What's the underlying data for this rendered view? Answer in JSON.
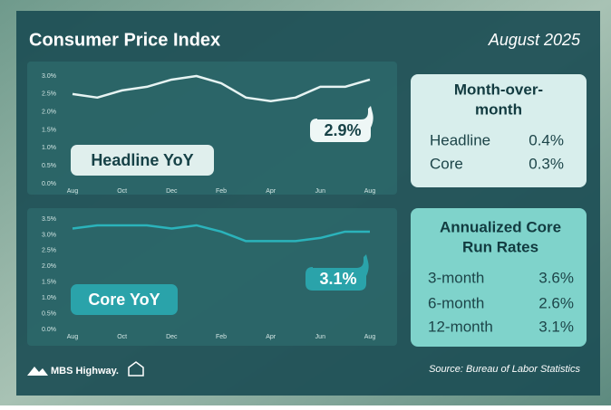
{
  "header": {
    "title": "Consumer Price Index",
    "date": "August 2025"
  },
  "chart_data": [
    {
      "type": "line",
      "title": "Headline YoY",
      "categories": [
        "Aug",
        null,
        "Oct",
        null,
        "Dec",
        null,
        "Feb",
        null,
        "Apr",
        null,
        "Jun",
        null,
        "Aug"
      ],
      "values": [
        2.5,
        2.4,
        2.6,
        2.7,
        2.9,
        3.0,
        2.8,
        2.4,
        2.3,
        2.4,
        2.7,
        2.7,
        2.9
      ],
      "value_labels": [
        null,
        null,
        null,
        null,
        null,
        null,
        null,
        null,
        null,
        null,
        null,
        null,
        "2.9%"
      ],
      "color": "#e6f3f2",
      "ylim": [
        0,
        3
      ],
      "yticks": [
        {
          "value": 0,
          "label": "0.0%"
        },
        {
          "value": 0.5,
          "label": "0.5%"
        },
        {
          "value": 1,
          "label": "1.0%"
        },
        {
          "value": 1.5,
          "label": "1.5%"
        },
        {
          "value": 2,
          "label": "2.0%"
        },
        {
          "value": 2.5,
          "label": "2.5%"
        },
        {
          "value": 3,
          "label": "3.0%"
        }
      ],
      "grid": false
    },
    {
      "type": "line",
      "title": "Core YoY",
      "categories": [
        "Aug",
        null,
        "Oct",
        null,
        "Dec",
        null,
        "Feb",
        null,
        "Apr",
        null,
        "Jun",
        null,
        "Aug"
      ],
      "values": [
        3.2,
        3.3,
        3.3,
        3.3,
        3.2,
        3.3,
        3.1,
        2.8,
        2.8,
        2.8,
        2.9,
        3.1,
        3.1
      ],
      "value_labels": [
        null,
        null,
        null,
        null,
        null,
        null,
        null,
        null,
        null,
        null,
        null,
        null,
        "3.1%"
      ],
      "color": "#2bb3bb",
      "ylim": [
        0,
        3.5
      ],
      "yticks": [
        {
          "value": 0,
          "label": "0.0%"
        },
        {
          "value": 0.5,
          "label": "0.5%"
        },
        {
          "value": 1,
          "label": "1.0%"
        },
        {
          "value": 1.5,
          "label": "1.5%"
        },
        {
          "value": 2,
          "label": "2.0%"
        },
        {
          "value": 2.5,
          "label": "2.5%"
        },
        {
          "value": 3,
          "label": "3.0%"
        },
        {
          "value": 3.5,
          "label": "3.5%"
        }
      ],
      "grid": false
    }
  ],
  "tables": [
    {
      "title": "Month-over-month",
      "rows": [
        [
          "Headline",
          "0.4%"
        ],
        [
          "Core",
          "0.3%"
        ]
      ]
    },
    {
      "title": "Annualized Core Run Rates",
      "rows": [
        [
          "3-month",
          "3.6%"
        ],
        [
          "6-month",
          "2.6%"
        ],
        [
          "12-month",
          "3.1%"
        ]
      ]
    }
  ],
  "footer": {
    "brand": "MBS Highway.",
    "source": "Source: Bureau of Labor Statistics"
  }
}
